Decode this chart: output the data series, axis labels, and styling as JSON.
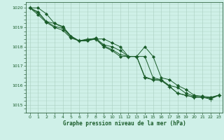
{
  "title": "Graphe pression niveau de la mer (hPa)",
  "bg_color": "#cff0e8",
  "grid_color": "#aacfbf",
  "line_color": "#1a5c2a",
  "axis_color": "#336644",
  "xlim": [
    -0.5,
    23.5
  ],
  "ylim": [
    1014.6,
    1020.3
  ],
  "yticks": [
    1015,
    1016,
    1017,
    1018,
    1019,
    1020
  ],
  "xticks": [
    0,
    1,
    2,
    3,
    4,
    5,
    6,
    7,
    8,
    9,
    10,
    11,
    12,
    13,
    14,
    15,
    16,
    17,
    18,
    19,
    20,
    21,
    22,
    23
  ],
  "series": [
    [
      1020.0,
      1020.0,
      1019.7,
      1019.2,
      1019.05,
      1018.55,
      1018.3,
      1018.35,
      1018.4,
      1018.4,
      1018.2,
      1018.0,
      1017.5,
      1017.5,
      1018.0,
      1017.5,
      1016.4,
      1016.3,
      1016.0,
      1015.8,
      1015.5,
      1015.45,
      1015.4,
      1015.5
    ],
    [
      1020.0,
      1019.8,
      1019.3,
      1019.2,
      1019.0,
      1018.55,
      1018.3,
      1018.35,
      1018.45,
      1018.1,
      1018.0,
      1017.8,
      1017.5,
      1017.5,
      1017.5,
      1016.4,
      1016.3,
      1016.0,
      1015.9,
      1015.6,
      1015.45,
      1015.4,
      1015.35,
      1015.5
    ],
    [
      1020.0,
      1019.75,
      1019.3,
      1019.05,
      1018.95,
      1018.5,
      1018.3,
      1018.4,
      1018.4,
      1018.05,
      1017.85,
      1017.6,
      1017.5,
      1017.5,
      1016.45,
      1016.3,
      1016.3,
      1015.95,
      1015.6,
      1015.5,
      1015.4,
      1015.4,
      1015.3,
      1015.5
    ],
    [
      1020.0,
      1019.65,
      1019.25,
      1019.0,
      1018.85,
      1018.45,
      1018.3,
      1018.3,
      1018.4,
      1018.0,
      1017.8,
      1017.5,
      1017.5,
      1017.5,
      1016.4,
      1016.3,
      1016.25,
      1015.95,
      1015.6,
      1015.5,
      1015.4,
      1015.4,
      1015.35,
      1015.5
    ]
  ],
  "markers": [
    "D",
    "D",
    "+",
    "D"
  ],
  "markersizes": [
    2.0,
    2.0,
    4.0,
    2.0
  ],
  "linewidths": [
    0.7,
    0.7,
    0.7,
    0.7
  ]
}
